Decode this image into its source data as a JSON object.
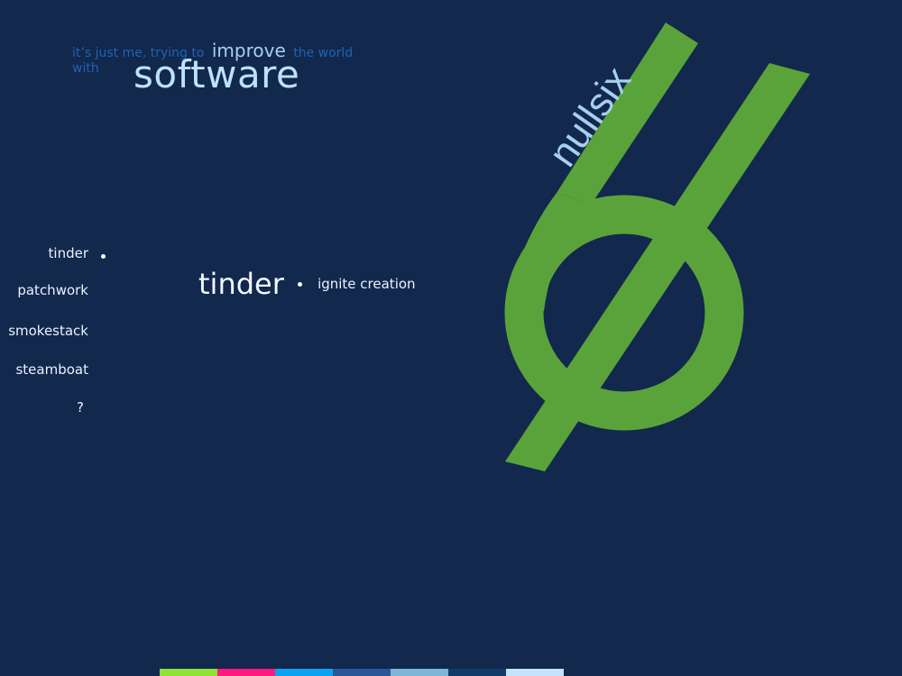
{
  "tagline": {
    "lead": "it’s just me, trying to",
    "improve": "improve",
    "tail": "the world",
    "with": "with",
    "software": "software"
  },
  "nav": {
    "items": [
      {
        "label": "tinder",
        "active": true
      },
      {
        "label": "patchwork",
        "active": false
      },
      {
        "label": "smokestack",
        "active": false
      },
      {
        "label": "steamboat",
        "active": false
      },
      {
        "label": "?",
        "active": false
      }
    ]
  },
  "feature": {
    "name": "tinder",
    "description": "ignite creation"
  },
  "logo": {
    "text": "nullsix",
    "symbol": "six-slash-icon"
  },
  "colors": {
    "background": "#12284d",
    "accent_green": "#5aa33a",
    "logo_text": "#a7cfee"
  },
  "palette": [
    "#8fe333",
    "#ff1a80",
    "#0aa4f2",
    "#2a5797",
    "#7eb6d8",
    "#123c68",
    "#c3e4fb"
  ]
}
